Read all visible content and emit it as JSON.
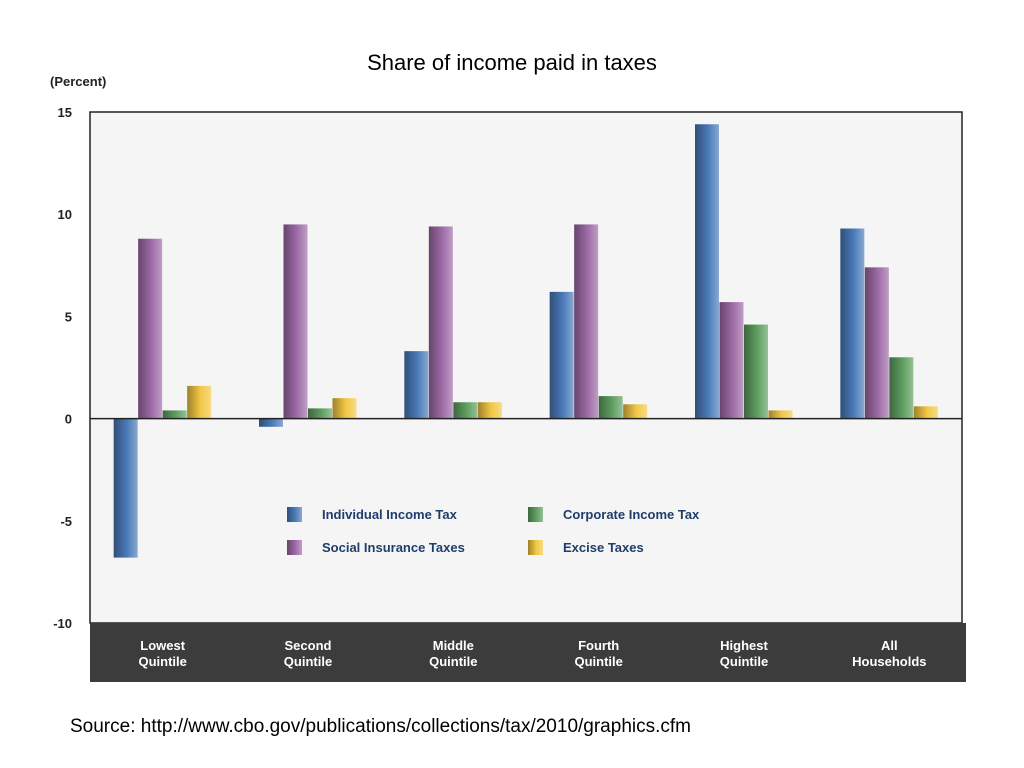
{
  "page": {
    "title": "Share of income paid in taxes",
    "source": "Source: http://www.cbo.gov/publications/collections/tax/2010/graphics.cfm"
  },
  "chart_data": {
    "type": "bar",
    "ylabel": "(Percent)",
    "ylim": [
      -10,
      15
    ],
    "yticks": [
      "15",
      "10",
      "5",
      "0",
      "-5",
      "-10"
    ],
    "ytick_values": [
      15,
      10,
      5,
      0,
      -5,
      -10
    ],
    "categories": [
      [
        "Lowest",
        "Quintile"
      ],
      [
        "Second",
        "Quintile"
      ],
      [
        "Middle",
        "Quintile"
      ],
      [
        "Fourth",
        "Quintile"
      ],
      [
        "Highest",
        "Quintile"
      ],
      [
        "All",
        "Households"
      ]
    ],
    "legend_position": "center",
    "series": [
      {
        "name": "Individual Income Tax",
        "color": "#4a7ab8",
        "values": [
          -6.8,
          -0.4,
          3.3,
          6.2,
          14.4,
          9.3
        ]
      },
      {
        "name": "Social Insurance Taxes",
        "color": "#9d6aa6",
        "values": [
          8.8,
          9.5,
          9.4,
          9.5,
          5.7,
          7.4
        ]
      },
      {
        "name": "Corporate Income Tax",
        "color": "#5e9e5f",
        "values": [
          0.4,
          0.5,
          0.8,
          1.1,
          4.6,
          3.0
        ]
      },
      {
        "name": "Excise Taxes",
        "color": "#f2c744",
        "values": [
          1.6,
          1.0,
          0.8,
          0.7,
          0.4,
          0.6
        ]
      }
    ]
  }
}
